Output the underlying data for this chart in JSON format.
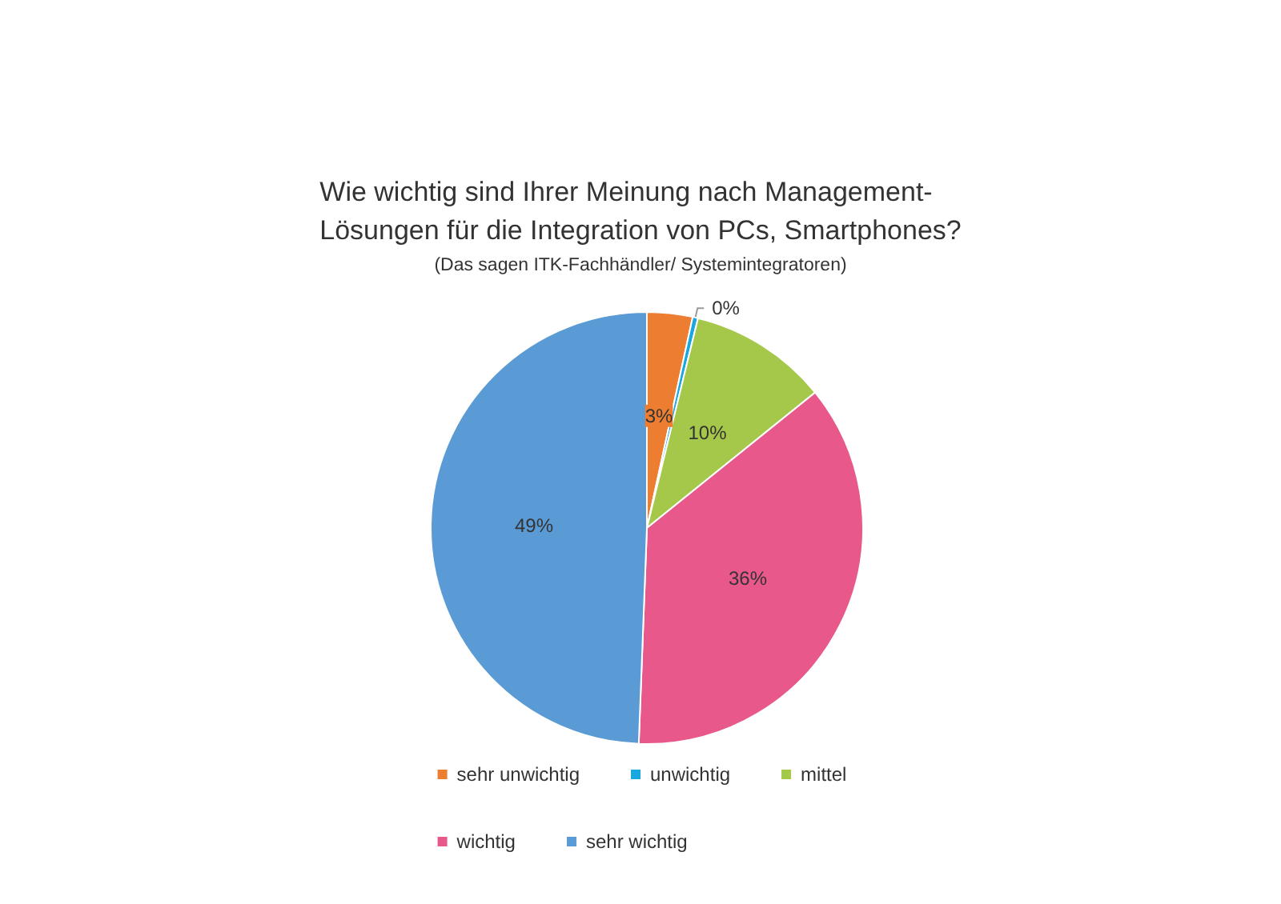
{
  "chart_data": {
    "type": "pie",
    "title": "Wie wichtig sind Ihrer Meinung nach Management-\nLösungen für die Integration von PCs, Smartphones?",
    "subtitle": "(Das sagen ITK-Fachhändler/ Systemintegratoren)",
    "categories": [
      "sehr unwichtig",
      "unwichtig",
      "mittel",
      "wichtig",
      "sehr wichtig"
    ],
    "values": [
      3.4,
      0.4,
      10.4,
      36.4,
      49.4
    ],
    "value_labels": [
      "3%",
      "0%",
      "10%",
      "36%",
      "49%"
    ],
    "colors": [
      "#ed7d31",
      "#1aa7e0",
      "#a5c84a",
      "#e8588a",
      "#5b9bd5"
    ],
    "legend": "bottom"
  }
}
